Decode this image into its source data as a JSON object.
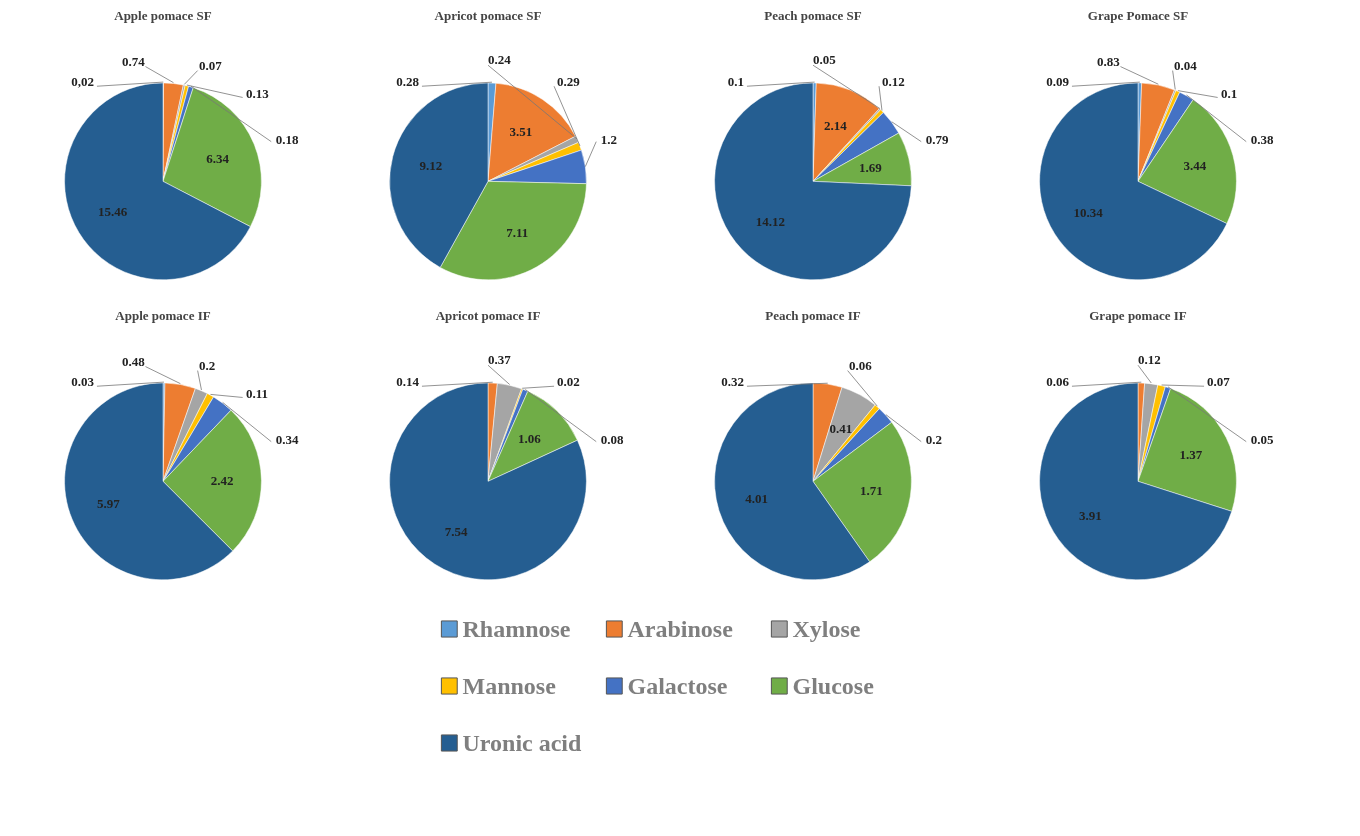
{
  "chart_data": [
    {
      "type": "pie",
      "title": "Apple pomace SF",
      "categories": [
        "Rhamnose",
        "Arabinose",
        "Xylose",
        "Mannose",
        "Galactose",
        "Glucose",
        "Uronic acid"
      ],
      "colors": [
        "#5b9bd5",
        "#ed7d31",
        "#a5a5a5",
        "#ffc000",
        "#4472c4",
        "#70ad47",
        "#255e91"
      ],
      "values": [
        0.02,
        0.74,
        0.07,
        0.13,
        0.18,
        6.34,
        15.46
      ],
      "value_labels": [
        "0,02",
        "0.74",
        "0.07",
        "0.13",
        "0.18",
        "6.34",
        "15.46"
      ],
      "legend": "bottom"
    },
    {
      "type": "pie",
      "title": "Apricot pomace SF",
      "categories": [
        null,
        null,
        null,
        null,
        null,
        null,
        null
      ],
      "colors": [
        "#5b9bd5",
        "#ed7d31",
        "#a5a5a5",
        "#ffc000",
        "#4472c4",
        "#70ad47",
        "#255e91"
      ],
      "values": [
        0.28,
        3.51,
        0.24,
        0.29,
        1.2,
        7.11,
        9.12
      ],
      "value_labels": [
        "0.28",
        "3.51",
        "0.24",
        "0.29",
        "1.2",
        "7.11",
        "9.12"
      ]
    },
    {
      "type": "pie",
      "title": "Peach pomace SF",
      "categories": [
        null,
        null,
        null,
        null,
        null,
        null,
        null
      ],
      "colors": [
        "#5b9bd5",
        "#ed7d31",
        "#a5a5a5",
        "#ffc000",
        "#4472c4",
        "#70ad47",
        "#255e91"
      ],
      "values": [
        0.1,
        2.14,
        0.05,
        0.12,
        0.79,
        1.69,
        14.12
      ],
      "value_labels": [
        "0.1",
        "2.14",
        "0.05",
        "0.12",
        "0.79",
        "1.69",
        "14.12"
      ]
    },
    {
      "type": "pie",
      "title": "Grape Pomace SF",
      "categories": [
        null,
        null,
        null,
        null,
        null,
        null,
        null
      ],
      "colors": [
        "#5b9bd5",
        "#ed7d31",
        "#a5a5a5",
        "#ffc000",
        "#4472c4",
        "#70ad47",
        "#255e91"
      ],
      "values": [
        0.09,
        0.83,
        0.04,
        0.1,
        0.38,
        3.44,
        10.34
      ],
      "value_labels": [
        "0.09",
        "0.83",
        "0.04",
        "0.1",
        "0.38",
        "3.44",
        "10.34"
      ]
    },
    {
      "type": "pie",
      "title": "Apple pomace IF",
      "categories": [
        null,
        null,
        null,
        null,
        null,
        null,
        null
      ],
      "colors": [
        "#5b9bd5",
        "#ed7d31",
        "#a5a5a5",
        "#ffc000",
        "#4472c4",
        "#70ad47",
        "#255e91"
      ],
      "values": [
        0.03,
        0.48,
        0.2,
        0.11,
        0.34,
        2.42,
        5.97
      ],
      "value_labels": [
        "0.03",
        "0.48",
        "0.2",
        "0.11",
        "0.34",
        "2.42",
        "5.97"
      ]
    },
    {
      "type": "pie",
      "title": "Apricot pomace IF",
      "categories": [
        null,
        null,
        null,
        null,
        null,
        null,
        null
      ],
      "colors": [
        "#5b9bd5",
        "#ed7d31",
        "#a5a5a5",
        "#ffc000",
        "#4472c4",
        "#70ad47",
        "#255e91"
      ],
      "values": [
        null,
        0.14,
        0.37,
        0.02,
        0.08,
        1.06,
        7.54
      ],
      "value_labels": [
        null,
        "0.14",
        "0.37",
        "0.02",
        "0.08",
        "1.06",
        "7.54"
      ]
    },
    {
      "type": "pie",
      "title": "Peach pomace IF",
      "categories": [
        null,
        null,
        null,
        null,
        null,
        null,
        null
      ],
      "colors": [
        "#5b9bd5",
        "#ed7d31",
        "#a5a5a5",
        "#ffc000",
        "#4472c4",
        "#70ad47",
        "#255e91"
      ],
      "values": [
        null,
        0.32,
        0.41,
        0.06,
        0.2,
        1.71,
        4.01
      ],
      "value_labels": [
        null,
        "0.32",
        "0.41",
        "0.06",
        "0.2",
        "1.71",
        "4.01"
      ]
    },
    {
      "type": "pie",
      "title": "Grape pomace IF",
      "categories": [
        null,
        null,
        null,
        null,
        null,
        null,
        null
      ],
      "colors": [
        "#5b9bd5",
        "#ed7d31",
        "#a5a5a5",
        "#ffc000",
        "#4472c4",
        "#70ad47",
        "#255e91"
      ],
      "values": [
        null,
        0.06,
        0.12,
        0.07,
        0.05,
        1.37,
        3.91
      ],
      "value_labels": [
        null,
        "0.06",
        "0.12",
        "0.07",
        "0.05",
        "1.37",
        "3.91"
      ]
    }
  ]
}
